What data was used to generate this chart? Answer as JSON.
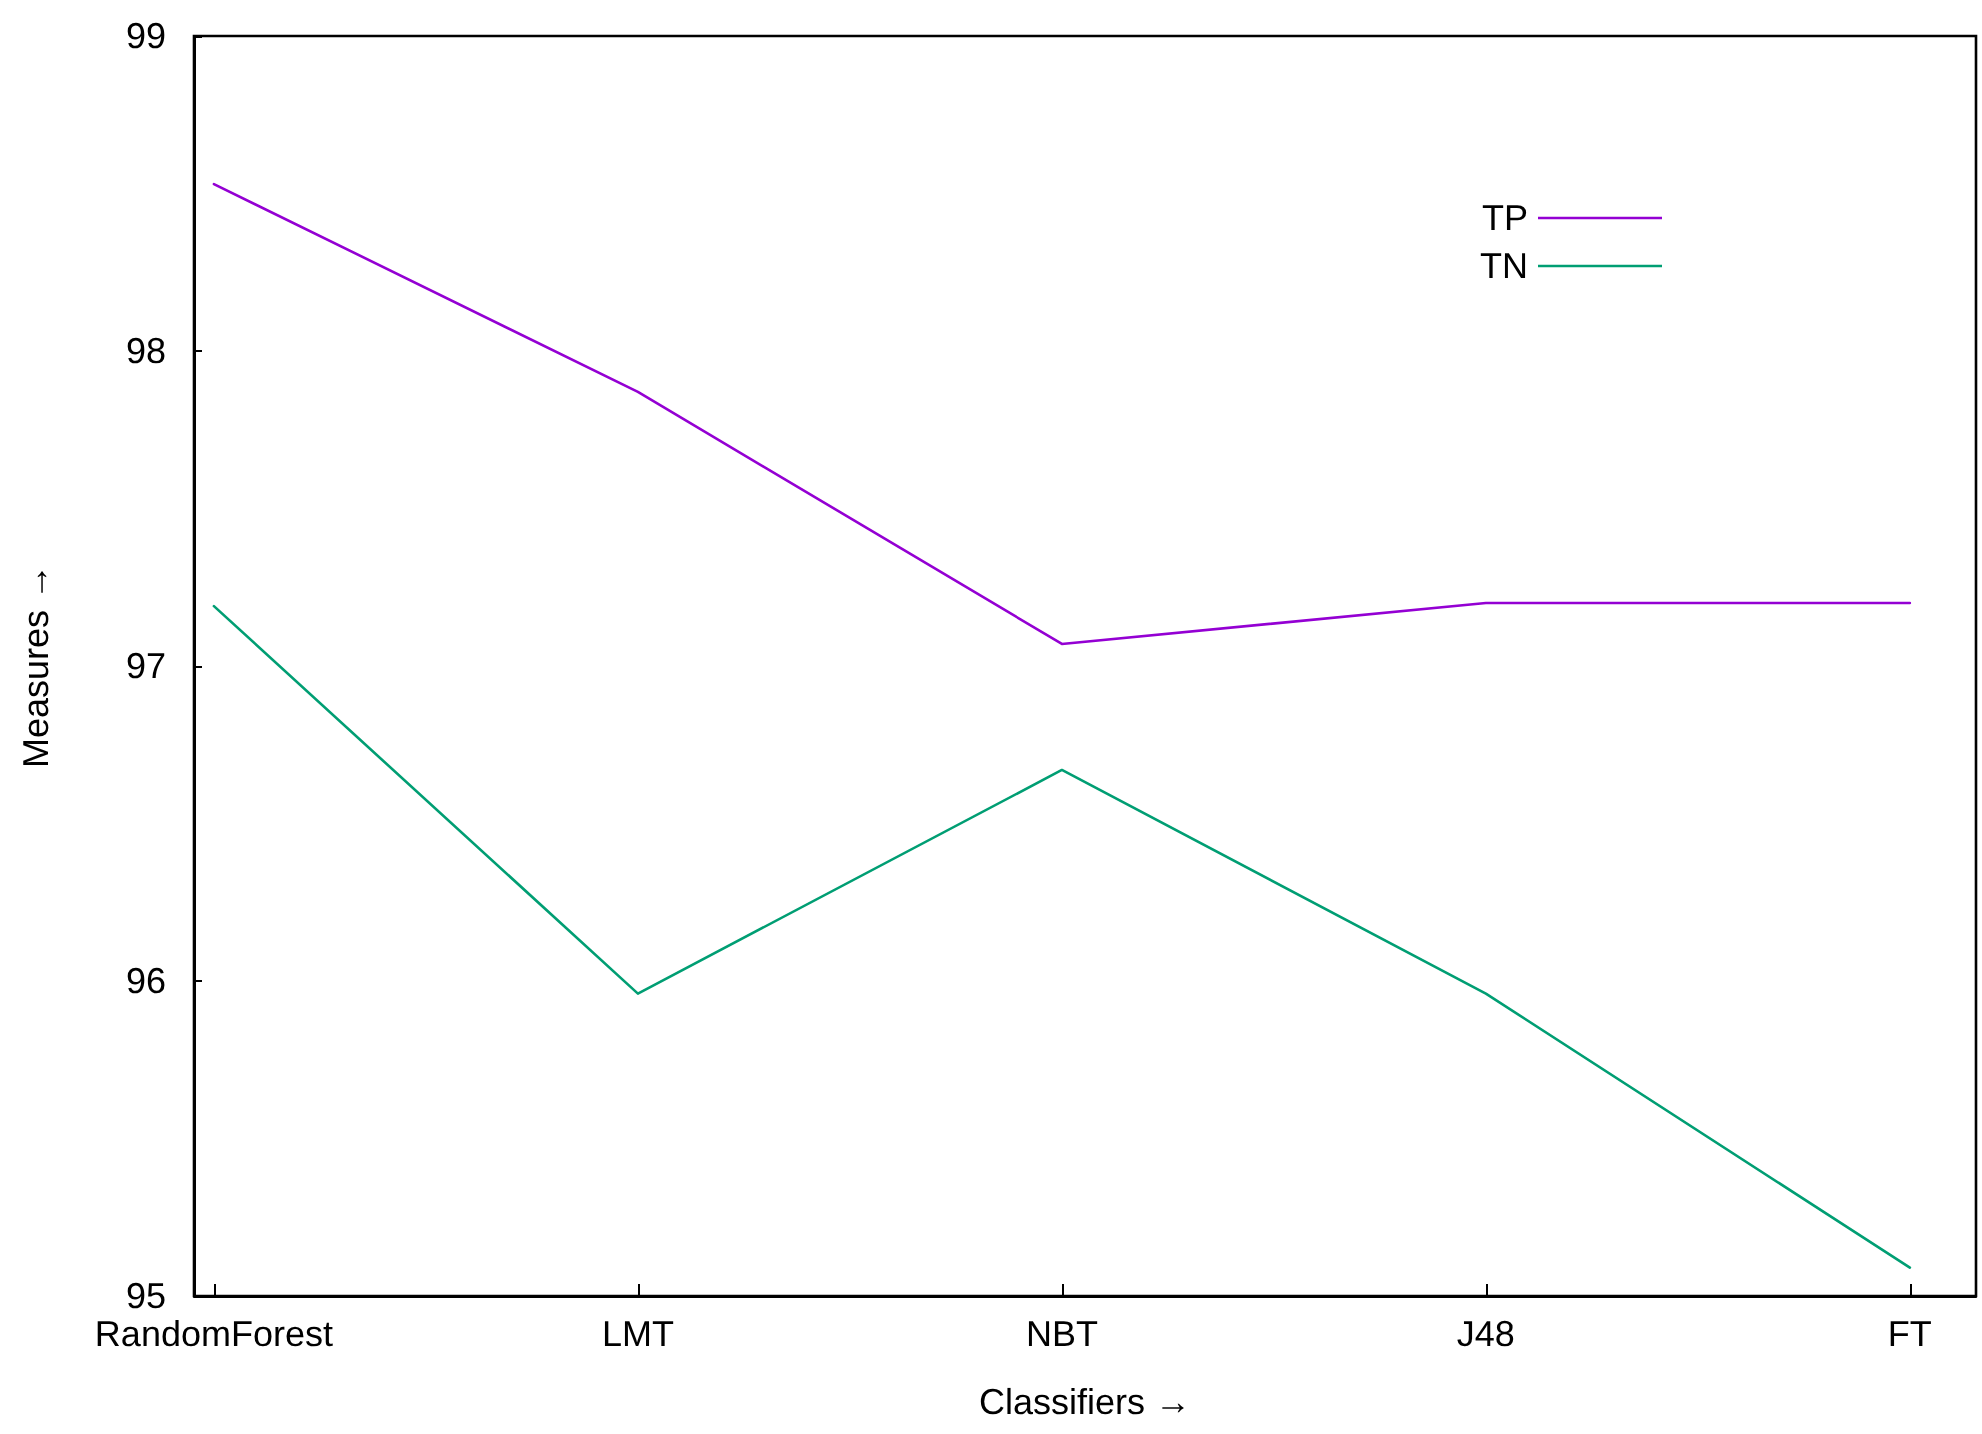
{
  "chart_data": {
    "type": "line",
    "xlabel": "Classifiers →",
    "ylabel": "Measures →",
    "categories": [
      "RandomForest",
      "LMT",
      "NBT",
      "J48",
      "FT"
    ],
    "series": [
      {
        "name": "TP",
        "color": "#9400d3",
        "values": [
          98.53,
          97.87,
          97.07,
          97.2,
          97.2
        ]
      },
      {
        "name": "TN",
        "color": "#009e73",
        "values": [
          97.19,
          95.96,
          96.67,
          95.96,
          95.09
        ]
      }
    ],
    "ylim": [
      95,
      99
    ],
    "yticks": [
      95,
      96,
      97,
      98,
      99
    ],
    "grid": false,
    "legend": "top right",
    "marker": "none",
    "line_style": "solid"
  }
}
